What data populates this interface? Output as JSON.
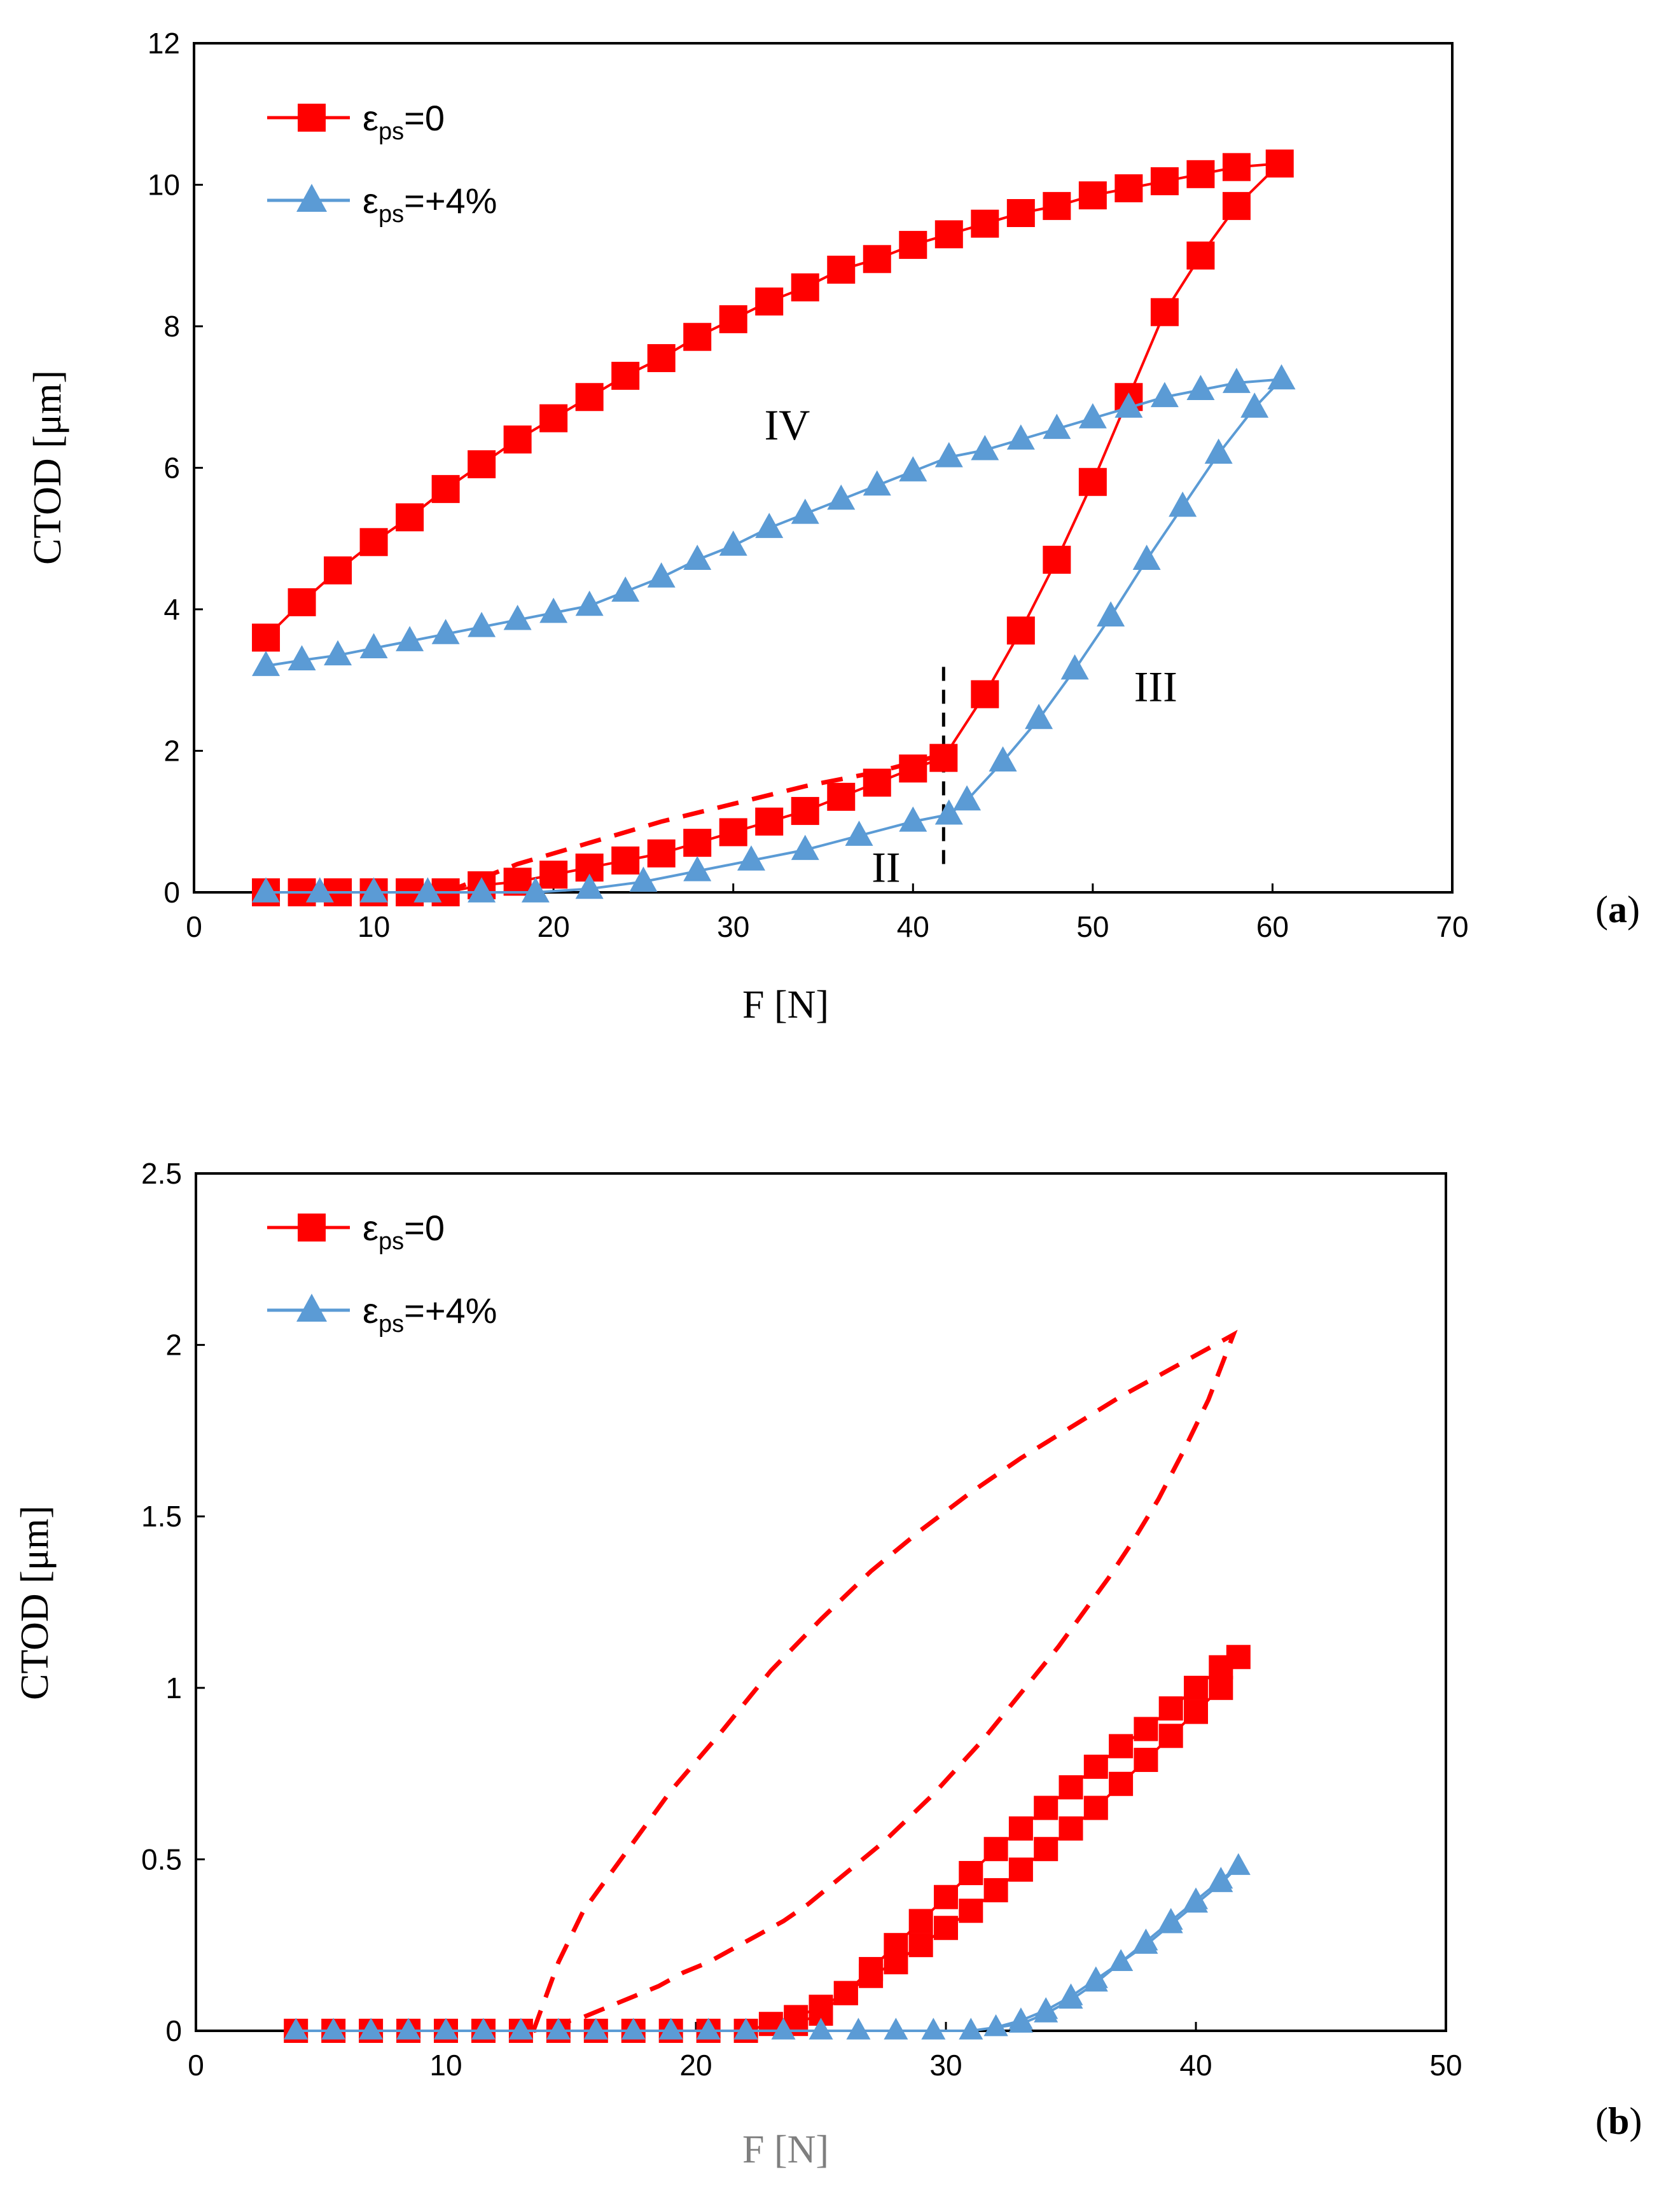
{
  "colors": {
    "red": "#ff0000",
    "blue": "#5b9bd5"
  },
  "chart_data": [
    {
      "id": "a",
      "type": "scatter",
      "panel_label": "a",
      "xlabel": "F [N]",
      "ylabel": "CTOD [μm]",
      "xlim": [
        0,
        70
      ],
      "ylim": [
        0,
        12
      ],
      "xticks": [
        0,
        10,
        20,
        30,
        40,
        50,
        60,
        70
      ],
      "yticks": [
        0,
        2,
        4,
        6,
        8,
        10,
        12
      ],
      "legend_position": "top-left",
      "annotations": [
        {
          "text": "IV",
          "x": 33,
          "y": 6.4
        },
        {
          "text": "III",
          "x": 53.5,
          "y": 2.7
        },
        {
          "text": "II",
          "x": 38.5,
          "y": 0.15
        }
      ],
      "vline": {
        "x": 41.7,
        "y0": 0.4,
        "y1": 3.3,
        "dashed": true
      },
      "series": [
        {
          "legend_sym": "ε",
          "legend_sub": "ps",
          "legend_rest": "=0",
          "marker": "square",
          "color": "#ff0000",
          "x": [
            4,
            6,
            8,
            10,
            12,
            14,
            16,
            18,
            20,
            22,
            24,
            26,
            28,
            30,
            32,
            34,
            36,
            38,
            40,
            41.7,
            44,
            46,
            48,
            50,
            52,
            54,
            56,
            58,
            60.4,
            58,
            56,
            54,
            52,
            50,
            48,
            46,
            44,
            42,
            40,
            38,
            36,
            34,
            32,
            30,
            28,
            26,
            24,
            22,
            20,
            18,
            16,
            14,
            12,
            10,
            8,
            6,
            4
          ],
          "y": [
            0,
            0,
            0,
            0,
            0,
            0,
            0.1,
            0.15,
            0.25,
            0.35,
            0.45,
            0.55,
            0.7,
            0.85,
            1.0,
            1.15,
            1.35,
            1.55,
            1.75,
            1.9,
            2.8,
            3.7,
            4.7,
            5.8,
            7.0,
            8.2,
            9.0,
            9.7,
            10.3,
            10.25,
            10.15,
            10.05,
            9.95,
            9.85,
            9.7,
            9.6,
            9.45,
            9.3,
            9.15,
            8.95,
            8.8,
            8.55,
            8.35,
            8.1,
            7.85,
            7.55,
            7.3,
            7.0,
            6.7,
            6.4,
            6.05,
            5.7,
            5.3,
            4.95,
            4.55,
            4.1,
            3.6
          ],
          "dashed_x": [
            14,
            18,
            22,
            26,
            30,
            34,
            38,
            41.7
          ],
          "dashed_y": [
            0,
            0.4,
            0.7,
            1.0,
            1.25,
            1.5,
            1.7,
            1.95
          ]
        },
        {
          "legend_sym": "ε",
          "legend_sub": "ps",
          "legend_rest": "=+4%",
          "marker": "triangle",
          "color": "#5b9bd5",
          "x": [
            4,
            7,
            10,
            13,
            16,
            19,
            22,
            25,
            28,
            31,
            34,
            37,
            40,
            42,
            43,
            45,
            47,
            49,
            51,
            53,
            55,
            57,
            59,
            60.5,
            58,
            56,
            54,
            52,
            50,
            48,
            46,
            44,
            42,
            40,
            38,
            36,
            34,
            32,
            30,
            28,
            26,
            24,
            22,
            20,
            18,
            16,
            14,
            12,
            10,
            8,
            6,
            4
          ],
          "y": [
            0,
            0,
            0,
            0,
            0,
            0,
            0.05,
            0.15,
            0.3,
            0.45,
            0.6,
            0.8,
            1.0,
            1.1,
            1.3,
            1.85,
            2.45,
            3.15,
            3.9,
            4.7,
            5.45,
            6.2,
            6.85,
            7.25,
            7.2,
            7.1,
            7.0,
            6.85,
            6.7,
            6.55,
            6.4,
            6.25,
            6.15,
            5.95,
            5.75,
            5.55,
            5.35,
            5.15,
            4.9,
            4.7,
            4.45,
            4.25,
            4.05,
            3.95,
            3.85,
            3.75,
            3.65,
            3.55,
            3.45,
            3.35,
            3.28,
            3.2
          ]
        }
      ]
    },
    {
      "id": "b",
      "type": "scatter",
      "panel_label": "b",
      "xlabel": "F [N]",
      "ylabel": "CTOD [μm]",
      "xlim": [
        0,
        50
      ],
      "ylim": [
        0,
        2.5
      ],
      "xticks": [
        0,
        10,
        20,
        30,
        40,
        50
      ],
      "yticks": [
        0,
        0.5,
        1,
        1.5,
        2,
        2.5
      ],
      "legend_position": "top-left",
      "series": [
        {
          "legend_sym": "ε",
          "legend_sub": "ps",
          "legend_rest": "=0",
          "marker": "square",
          "color": "#ff0000",
          "x": [
            4,
            5.5,
            7,
            8.5,
            10,
            11.5,
            13,
            14.5,
            16,
            17.5,
            19,
            20.5,
            22,
            23,
            24,
            25,
            26,
            27,
            28,
            29,
            30,
            31,
            32,
            33,
            34,
            35,
            36,
            37,
            38,
            39,
            40,
            41,
            41.7,
            41,
            40,
            39,
            38,
            37,
            36,
            35,
            34,
            33,
            32,
            31,
            30,
            29,
            28,
            27,
            26,
            25,
            24
          ],
          "y": [
            0,
            0,
            0,
            0,
            0,
            0,
            0,
            0,
            0,
            0,
            0,
            0,
            0,
            0.02,
            0.04,
            0.07,
            0.11,
            0.16,
            0.2,
            0.25,
            0.3,
            0.35,
            0.41,
            0.47,
            0.53,
            0.59,
            0.65,
            0.72,
            0.79,
            0.86,
            0.93,
            1.0,
            1.09,
            1.06,
            1.0,
            0.94,
            0.88,
            0.83,
            0.77,
            0.71,
            0.65,
            0.59,
            0.53,
            0.46,
            0.39,
            0.32,
            0.25,
            0.18,
            0.11,
            0.05,
            0.02
          ],
          "dashed_x": [
            13.5,
            14.5,
            15.5,
            17,
            19,
            21,
            23,
            25,
            27,
            29,
            31,
            33,
            35,
            37,
            39,
            41.5,
            40.5,
            39.5,
            38.5,
            37.5,
            36.5,
            35.5,
            34.5,
            33.5,
            32.5,
            31.5,
            30.5,
            29.5,
            28.5,
            27.5,
            26.5,
            25.5,
            24.5,
            23.5,
            22.5,
            21.5,
            20.5,
            19.5,
            18.5,
            17.5,
            16.5,
            15.5,
            14.5,
            13.5
          ],
          "dashed_y": [
            0.0,
            0.2,
            0.35,
            0.5,
            0.7,
            0.87,
            1.05,
            1.2,
            1.34,
            1.46,
            1.57,
            1.67,
            1.76,
            1.85,
            1.93,
            2.03,
            1.84,
            1.69,
            1.55,
            1.43,
            1.32,
            1.22,
            1.12,
            1.03,
            0.94,
            0.85,
            0.77,
            0.69,
            0.62,
            0.55,
            0.49,
            0.43,
            0.37,
            0.32,
            0.28,
            0.24,
            0.2,
            0.17,
            0.13,
            0.1,
            0.07,
            0.04,
            0.02,
            0.0
          ]
        },
        {
          "legend_sym": "ε",
          "legend_sub": "ps",
          "legend_rest": "=+4%",
          "marker": "triangle",
          "color": "#5b9bd5",
          "x": [
            4,
            5.5,
            7,
            8.5,
            10,
            11.5,
            13,
            14.5,
            16,
            17.5,
            19,
            20.5,
            22,
            23.5,
            25,
            26.5,
            28,
            29.5,
            31,
            32,
            33,
            34,
            35,
            36,
            37,
            38,
            39,
            40,
            41,
            41.7,
            41,
            40,
            39,
            38,
            37,
            36,
            35,
            34,
            33,
            32
          ],
          "y": [
            0,
            0,
            0,
            0,
            0,
            0,
            0,
            0,
            0,
            0,
            0,
            0,
            0,
            0,
            0,
            0,
            0,
            0,
            0,
            0.01,
            0.03,
            0.06,
            0.1,
            0.15,
            0.2,
            0.25,
            0.31,
            0.37,
            0.43,
            0.48,
            0.44,
            0.38,
            0.32,
            0.26,
            0.2,
            0.14,
            0.09,
            0.05,
            0.02,
            0.01
          ]
        }
      ]
    }
  ]
}
